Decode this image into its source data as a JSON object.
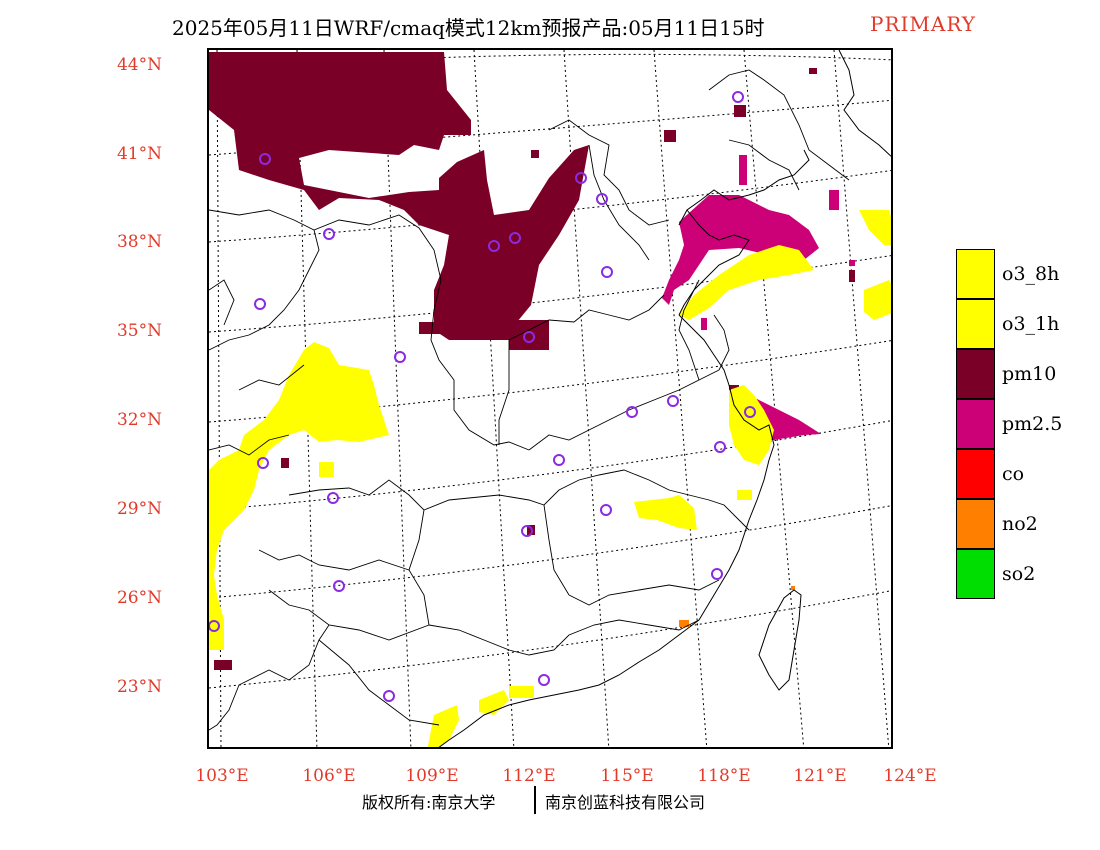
{
  "title": {
    "main": "2025年05月11日WRF/cmaq模式12km预报产品:05月11日15时",
    "status": "PRIMARY"
  },
  "map": {
    "lat_labels": [
      "44°N",
      "41°N",
      "38°N",
      "35°N",
      "32°N",
      "29°N",
      "26°N",
      "23°N"
    ],
    "lon_labels": [
      "103°E",
      "106°E",
      "109°E",
      "112°E",
      "115°E",
      "118°E",
      "121°E",
      "124°E"
    ],
    "lat_range": [
      21,
      44.5
    ],
    "lon_range": [
      102.7,
      124
    ]
  },
  "legend": {
    "items": [
      {
        "label": "o3_8h",
        "color": "#ffff00"
      },
      {
        "label": "o3_1h",
        "color": "#ffff00"
      },
      {
        "label": "pm10",
        "color": "#7b0028"
      },
      {
        "label": "pm2.5",
        "color": "#cc0077"
      },
      {
        "label": "co",
        "color": "#ff0000"
      },
      {
        "label": "no2",
        "color": "#ff7f00"
      },
      {
        "label": "so2",
        "color": "#00dd00"
      }
    ]
  },
  "stations_color": "#8a2be2",
  "footer": {
    "left": "版权所有:南京大学",
    "right": "南京创蓝科技有限公司"
  }
}
